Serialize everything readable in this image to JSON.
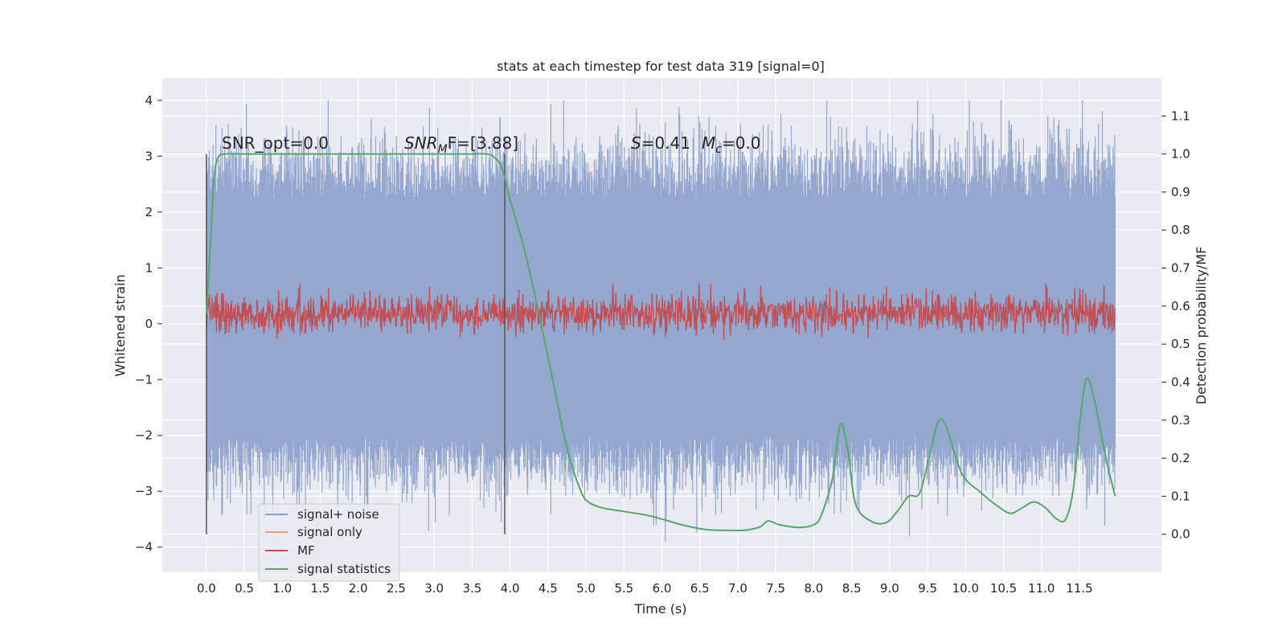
{
  "chart_data": {
    "type": "line",
    "title": "stats at each timestep for test data 319 [signal=0]",
    "xlabel": "Time (s)",
    "ylabel": "Whitened strain",
    "y2label": "Detection probability/MF",
    "xlim": [
      -0.58,
      12.58
    ],
    "ylim": [
      -4.45,
      4.4
    ],
    "y2lim": [
      -0.1,
      1.2
    ],
    "x_ticks": [
      "0.0",
      "0.5",
      "1.0",
      "1.5",
      "2.0",
      "2.5",
      "3.0",
      "3.5",
      "4.0",
      "4.5",
      "5.0",
      "5.5",
      "6.0",
      "6.5",
      "7.0",
      "7.5",
      "8.0",
      "8.5",
      "9.0",
      "9.5",
      "10.0",
      "10.5",
      "11.0",
      "11.5"
    ],
    "y_ticks": [
      "4",
      "3",
      "2",
      "1",
      "0",
      "−1",
      "−2",
      "−3",
      "−4"
    ],
    "y2_ticks": [
      "1.1",
      "1.0",
      "0.9",
      "0.8",
      "0.7",
      "0.6",
      "0.5",
      "0.4",
      "0.3",
      "0.2",
      "0.1",
      "0.0"
    ],
    "grid": true,
    "legend_position": "lower-left",
    "colors": {
      "noise": "#8fa3cc",
      "signal_only": "#e8a07c",
      "mf": "#c44e52",
      "stat": "#55a868",
      "plot_bg": "#eaeaf2",
      "grid": "#ffffff"
    },
    "series": [
      {
        "name": "signal+ noise",
        "description_kind": "noise band",
        "x_range": [
          0.0,
          11.97
        ],
        "typical_range": [
          -2.0,
          2.2
        ],
        "peak_max": 4.0,
        "peak_min": -3.9
      },
      {
        "name": "signal only",
        "values": []
      },
      {
        "name": "MF",
        "x_range": [
          0.0,
          11.97
        ],
        "y2_range": [
          0.5,
          0.66
        ],
        "peak": 0.66
      },
      {
        "name": "signal statistics",
        "x": [
          0.0,
          0.05,
          0.1,
          0.15,
          0.25,
          0.5,
          1.0,
          2.0,
          3.0,
          3.5,
          3.7,
          3.8,
          3.9,
          4.0,
          4.2,
          4.4,
          4.6,
          4.7,
          4.8,
          4.9,
          5.0,
          5.2,
          5.5,
          5.8,
          6.0,
          6.3,
          6.6,
          7.0,
          7.15,
          7.3,
          7.4,
          7.55,
          7.8,
          8.0,
          8.1,
          8.25,
          8.35,
          8.45,
          8.55,
          8.75,
          8.95,
          9.1,
          9.25,
          9.4,
          9.55,
          9.65,
          9.75,
          9.95,
          10.2,
          10.45,
          10.6,
          10.75,
          10.9,
          11.05,
          11.2,
          11.32,
          11.42,
          11.52,
          11.6,
          11.7,
          11.85,
          11.97
        ],
        "values": [
          0.58,
          0.75,
          0.93,
          0.99,
          1.0,
          1.0,
          1.0,
          1.0,
          1.0,
          1.0,
          1.0,
          0.99,
          0.96,
          0.88,
          0.74,
          0.56,
          0.37,
          0.27,
          0.19,
          0.13,
          0.09,
          0.07,
          0.06,
          0.05,
          0.04,
          0.023,
          0.012,
          0.01,
          0.012,
          0.02,
          0.035,
          0.025,
          0.018,
          0.025,
          0.05,
          0.15,
          0.29,
          0.22,
          0.08,
          0.035,
          0.03,
          0.06,
          0.1,
          0.11,
          0.23,
          0.3,
          0.28,
          0.16,
          0.11,
          0.07,
          0.055,
          0.07,
          0.085,
          0.07,
          0.04,
          0.04,
          0.12,
          0.32,
          0.41,
          0.35,
          0.2,
          0.1
        ]
      }
    ],
    "vertical_lines_x": [
      0.0,
      3.93
    ],
    "annotations": [
      {
        "key": "snr_opt",
        "text": "SNR_opt=0.0"
      },
      {
        "key": "snr_mf",
        "main": "SNR",
        "sub": "M",
        "rest": "F=[3.88]"
      },
      {
        "key": "stats",
        "s_label": "S",
        "s_value": "=0.41",
        "m_label": "M",
        "m_sub": "c",
        "m_value": "=0.0"
      }
    ],
    "legend": [
      {
        "label": "signal+ noise",
        "color": "#8fa3cc"
      },
      {
        "label": "signal only",
        "color": "#e8a07c"
      },
      {
        "label": "MF",
        "color": "#c44e52"
      },
      {
        "label": "signal statistics",
        "color": "#55a868"
      }
    ]
  }
}
